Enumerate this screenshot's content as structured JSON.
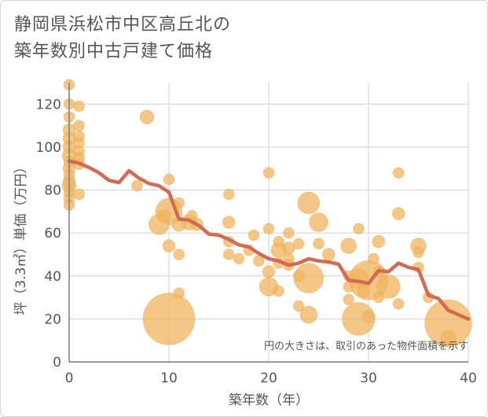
{
  "title_line1": "静岡県浜松市中区高丘北の",
  "title_line2": "築年数別中古戸建て価格",
  "chart_data": {
    "type": "scatter",
    "xlabel": "築年数（年）",
    "ylabel": "坪（3.3㎡）単価（万円）",
    "xlim": [
      0,
      40
    ],
    "ylim": [
      0,
      130
    ],
    "xticks": [
      0,
      10,
      20,
      30,
      40
    ],
    "yticks": [
      0,
      20,
      40,
      60,
      80,
      100,
      120
    ],
    "grid": true,
    "annotation": "円の大きさは、取引のあった物件面積を示す",
    "colors": {
      "bubble": "#f0b45e",
      "line": "#d36a52",
      "grid": "#c9d3dc",
      "axis": "#6f7f8f"
    },
    "points": [
      {
        "x": 0,
        "y": 129,
        "s": 7
      },
      {
        "x": 0,
        "y": 120,
        "s": 7
      },
      {
        "x": 0,
        "y": 114,
        "s": 7
      },
      {
        "x": 0,
        "y": 108,
        "s": 8
      },
      {
        "x": 0,
        "y": 104,
        "s": 8
      },
      {
        "x": 0,
        "y": 100,
        "s": 8
      },
      {
        "x": 0,
        "y": 96,
        "s": 9
      },
      {
        "x": 0,
        "y": 93,
        "s": 7
      },
      {
        "x": 0,
        "y": 90,
        "s": 8
      },
      {
        "x": 0,
        "y": 87,
        "s": 7
      },
      {
        "x": 0,
        "y": 84,
        "s": 8
      },
      {
        "x": 0,
        "y": 82,
        "s": 9
      },
      {
        "x": 0,
        "y": 79,
        "s": 7
      },
      {
        "x": 0,
        "y": 76,
        "s": 7
      },
      {
        "x": 0,
        "y": 73,
        "s": 7
      },
      {
        "x": 1,
        "y": 119,
        "s": 7
      },
      {
        "x": 1,
        "y": 110,
        "s": 7
      },
      {
        "x": 1,
        "y": 105,
        "s": 7
      },
      {
        "x": 1,
        "y": 102,
        "s": 7
      },
      {
        "x": 1,
        "y": 98,
        "s": 7
      },
      {
        "x": 1,
        "y": 95,
        "s": 7
      },
      {
        "x": 1,
        "y": 92,
        "s": 7
      },
      {
        "x": 1,
        "y": 78,
        "s": 7
      },
      {
        "x": 6.8,
        "y": 82,
        "s": 7
      },
      {
        "x": 7.8,
        "y": 114,
        "s": 9
      },
      {
        "x": 9,
        "y": 64,
        "s": 13
      },
      {
        "x": 9.5,
        "y": 68,
        "s": 8
      },
      {
        "x": 10,
        "y": 85,
        "s": 7
      },
      {
        "x": 10,
        "y": 70,
        "s": 17
      },
      {
        "x": 10,
        "y": 54,
        "s": 8
      },
      {
        "x": 10,
        "y": 20,
        "s": 33
      },
      {
        "x": 11,
        "y": 74,
        "s": 7
      },
      {
        "x": 11,
        "y": 64,
        "s": 9
      },
      {
        "x": 11,
        "y": 32,
        "s": 7
      },
      {
        "x": 11,
        "y": 50,
        "s": 7
      },
      {
        "x": 12,
        "y": 65,
        "s": 10
      },
      {
        "x": 12.3,
        "y": 68,
        "s": 7
      },
      {
        "x": 12.8,
        "y": 64,
        "s": 8
      },
      {
        "x": 16,
        "y": 78,
        "s": 7
      },
      {
        "x": 16,
        "y": 65,
        "s": 8
      },
      {
        "x": 16,
        "y": 50,
        "s": 7
      },
      {
        "x": 16,
        "y": 56,
        "s": 7
      },
      {
        "x": 17,
        "y": 48,
        "s": 7
      },
      {
        "x": 18,
        "y": 52,
        "s": 7
      },
      {
        "x": 18.5,
        "y": 59,
        "s": 7
      },
      {
        "x": 19,
        "y": 47,
        "s": 7
      },
      {
        "x": 20,
        "y": 88,
        "s": 7
      },
      {
        "x": 20,
        "y": 62,
        "s": 7
      },
      {
        "x": 20,
        "y": 35,
        "s": 12
      },
      {
        "x": 20,
        "y": 42,
        "s": 8
      },
      {
        "x": 21,
        "y": 52,
        "s": 10
      },
      {
        "x": 21,
        "y": 46,
        "s": 7
      },
      {
        "x": 21,
        "y": 33,
        "s": 7
      },
      {
        "x": 21,
        "y": 56,
        "s": 7
      },
      {
        "x": 22,
        "y": 60,
        "s": 7
      },
      {
        "x": 22,
        "y": 53,
        "s": 8
      },
      {
        "x": 22,
        "y": 48,
        "s": 7
      },
      {
        "x": 22,
        "y": 45,
        "s": 7
      },
      {
        "x": 23,
        "y": 26,
        "s": 7
      },
      {
        "x": 23,
        "y": 40,
        "s": 7
      },
      {
        "x": 23,
        "y": 55,
        "s": 7
      },
      {
        "x": 24,
        "y": 74,
        "s": 14
      },
      {
        "x": 24,
        "y": 39,
        "s": 19
      },
      {
        "x": 24,
        "y": 22,
        "s": 11
      },
      {
        "x": 25,
        "y": 65,
        "s": 12
      },
      {
        "x": 25,
        "y": 55,
        "s": 7
      },
      {
        "x": 26,
        "y": 50,
        "s": 8
      },
      {
        "x": 28,
        "y": 54,
        "s": 10
      },
      {
        "x": 28,
        "y": 40,
        "s": 7
      },
      {
        "x": 28,
        "y": 35,
        "s": 7
      },
      {
        "x": 28,
        "y": 29,
        "s": 7
      },
      {
        "x": 29,
        "y": 62,
        "s": 7
      },
      {
        "x": 29,
        "y": 20,
        "s": 21
      },
      {
        "x": 29,
        "y": 39,
        "s": 12
      },
      {
        "x": 29.5,
        "y": 33,
        "s": 8
      },
      {
        "x": 30,
        "y": 38,
        "s": 25
      },
      {
        "x": 30,
        "y": 21,
        "s": 8
      },
      {
        "x": 30.5,
        "y": 48,
        "s": 7
      },
      {
        "x": 31,
        "y": 56,
        "s": 8
      },
      {
        "x": 31,
        "y": 42,
        "s": 7
      },
      {
        "x": 31,
        "y": 30,
        "s": 7
      },
      {
        "x": 32,
        "y": 35,
        "s": 15
      },
      {
        "x": 33,
        "y": 88,
        "s": 7
      },
      {
        "x": 33,
        "y": 69,
        "s": 8
      },
      {
        "x": 33,
        "y": 27,
        "s": 7
      },
      {
        "x": 35,
        "y": 54,
        "s": 10
      },
      {
        "x": 35,
        "y": 51,
        "s": 7
      },
      {
        "x": 35,
        "y": 44,
        "s": 7
      },
      {
        "x": 36,
        "y": 30,
        "s": 7
      },
      {
        "x": 38,
        "y": 18,
        "s": 30
      },
      {
        "x": 38,
        "y": 11,
        "s": 10
      }
    ],
    "trend": [
      {
        "x": 0,
        "y": 93.5
      },
      {
        "x": 1,
        "y": 92.5
      },
      {
        "x": 2,
        "y": 90.5
      },
      {
        "x": 3,
        "y": 88
      },
      {
        "x": 4,
        "y": 84.5
      },
      {
        "x": 5,
        "y": 83.5
      },
      {
        "x": 6,
        "y": 89
      },
      {
        "x": 7,
        "y": 85.5
      },
      {
        "x": 8,
        "y": 83
      },
      {
        "x": 9,
        "y": 82
      },
      {
        "x": 10,
        "y": 79
      },
      {
        "x": 11,
        "y": 66.5
      },
      {
        "x": 12,
        "y": 66
      },
      {
        "x": 13,
        "y": 63.5
      },
      {
        "x": 14,
        "y": 59.5
      },
      {
        "x": 15,
        "y": 59
      },
      {
        "x": 16,
        "y": 57
      },
      {
        "x": 17,
        "y": 54.5
      },
      {
        "x": 18,
        "y": 53.5
      },
      {
        "x": 19,
        "y": 50.5
      },
      {
        "x": 20,
        "y": 48
      },
      {
        "x": 21,
        "y": 47
      },
      {
        "x": 22,
        "y": 45
      },
      {
        "x": 23,
        "y": 46
      },
      {
        "x": 24,
        "y": 48
      },
      {
        "x": 25,
        "y": 47
      },
      {
        "x": 26,
        "y": 46.5
      },
      {
        "x": 27,
        "y": 45.5
      },
      {
        "x": 28,
        "y": 38
      },
      {
        "x": 29,
        "y": 37.5
      },
      {
        "x": 30,
        "y": 36.5
      },
      {
        "x": 31,
        "y": 42.5
      },
      {
        "x": 32,
        "y": 42
      },
      {
        "x": 33,
        "y": 46
      },
      {
        "x": 34,
        "y": 44
      },
      {
        "x": 35,
        "y": 43
      },
      {
        "x": 36,
        "y": 31
      },
      {
        "x": 37,
        "y": 29.5
      },
      {
        "x": 38,
        "y": 24
      },
      {
        "x": 39,
        "y": 22
      },
      {
        "x": 40,
        "y": 20
      }
    ]
  }
}
